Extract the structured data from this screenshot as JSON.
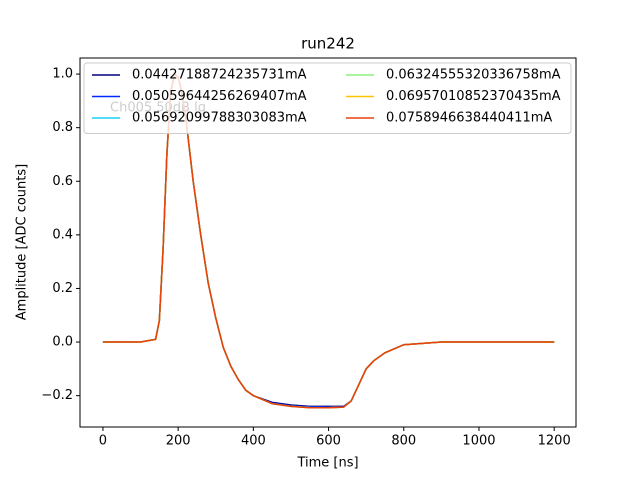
{
  "chart_data": {
    "type": "line",
    "title": "run242",
    "x_label": "Time [ns]",
    "y_label": "Amplitude [ADC counts]",
    "annotations": [
      "Ch005 50dB lg"
    ],
    "x": [
      0,
      50,
      100,
      140,
      150,
      160,
      170,
      180,
      190,
      200,
      210,
      220,
      230,
      240,
      260,
      280,
      300,
      320,
      340,
      360,
      380,
      400,
      450,
      500,
      550,
      600,
      640,
      660,
      680,
      700,
      720,
      750,
      800,
      850,
      900,
      1000,
      1100,
      1200
    ],
    "series": [
      {
        "name": "0.04427188724235731mA",
        "color": "#00007f",
        "values": [
          0,
          0,
          0,
          0.01,
          0.08,
          0.35,
          0.7,
          0.93,
          1.0,
          0.99,
          0.93,
          0.84,
          0.72,
          0.6,
          0.4,
          0.22,
          0.09,
          -0.02,
          -0.09,
          -0.14,
          -0.18,
          -0.2,
          -0.225,
          -0.235,
          -0.24,
          -0.24,
          -0.24,
          -0.22,
          -0.16,
          -0.1,
          -0.07,
          -0.04,
          -0.01,
          -0.005,
          0,
          0,
          0,
          0
        ]
      },
      {
        "name": "0.05059644256269407mA",
        "color": "#0028ff",
        "values": [
          0,
          0,
          0,
          0.01,
          0.08,
          0.35,
          0.7,
          0.93,
          1.0,
          0.99,
          0.93,
          0.84,
          0.72,
          0.6,
          0.4,
          0.22,
          0.09,
          -0.02,
          -0.09,
          -0.14,
          -0.18,
          -0.2,
          -0.228,
          -0.238,
          -0.242,
          -0.243,
          -0.242,
          -0.22,
          -0.16,
          -0.1,
          -0.07,
          -0.04,
          -0.01,
          -0.005,
          0,
          0,
          0,
          0
        ]
      },
      {
        "name": "0.05692099788303083mA",
        "color": "#1ad0f5",
        "values": [
          0,
          0,
          0,
          0.01,
          0.08,
          0.35,
          0.7,
          0.93,
          1.0,
          0.99,
          0.93,
          0.84,
          0.72,
          0.6,
          0.4,
          0.22,
          0.09,
          -0.02,
          -0.09,
          -0.14,
          -0.18,
          -0.2,
          -0.23,
          -0.24,
          -0.244,
          -0.245,
          -0.243,
          -0.22,
          -0.16,
          -0.1,
          -0.07,
          -0.04,
          -0.01,
          -0.005,
          0,
          0,
          0,
          0
        ]
      },
      {
        "name": "0.06324555320336758mA",
        "color": "#8ef07c",
        "values": [
          0,
          0,
          0,
          0.01,
          0.08,
          0.35,
          0.7,
          0.93,
          1.0,
          0.99,
          0.93,
          0.84,
          0.72,
          0.6,
          0.4,
          0.22,
          0.09,
          -0.02,
          -0.09,
          -0.14,
          -0.18,
          -0.2,
          -0.23,
          -0.24,
          -0.245,
          -0.245,
          -0.243,
          -0.22,
          -0.16,
          -0.1,
          -0.07,
          -0.04,
          -0.01,
          -0.005,
          0,
          0,
          0,
          0
        ]
      },
      {
        "name": "0.06957010852370435mA",
        "color": "#ffc400",
        "values": [
          0,
          0,
          0,
          0.01,
          0.08,
          0.35,
          0.7,
          0.93,
          1.0,
          0.99,
          0.93,
          0.84,
          0.72,
          0.6,
          0.4,
          0.22,
          0.09,
          -0.02,
          -0.09,
          -0.14,
          -0.18,
          -0.2,
          -0.23,
          -0.24,
          -0.245,
          -0.245,
          -0.243,
          -0.22,
          -0.16,
          -0.1,
          -0.07,
          -0.04,
          -0.01,
          -0.005,
          0,
          0,
          0,
          0
        ]
      },
      {
        "name": "0.0758946638440411mA",
        "color": "#e8400c",
        "values": [
          0,
          0,
          0,
          0.01,
          0.08,
          0.35,
          0.7,
          0.93,
          1.0,
          0.99,
          0.93,
          0.84,
          0.72,
          0.6,
          0.4,
          0.22,
          0.09,
          -0.02,
          -0.09,
          -0.14,
          -0.18,
          -0.2,
          -0.23,
          -0.24,
          -0.245,
          -0.245,
          -0.243,
          -0.22,
          -0.16,
          -0.1,
          -0.07,
          -0.04,
          -0.01,
          -0.005,
          0,
          0,
          0,
          0
        ]
      }
    ],
    "xlim": [
      -61,
      1258
    ],
    "xticks": [
      0,
      200,
      400,
      600,
      800,
      1000,
      1200
    ],
    "ylim": [
      -0.317,
      1.06
    ],
    "yticks": [
      {
        "value": -0.2,
        "label": "−0.2"
      },
      {
        "value": 0,
        "label": "0.0"
      },
      0.2,
      0.4,
      0.6,
      0.8,
      {
        "value": 1,
        "label": "1.0"
      }
    ],
    "legend": "upper left",
    "legend_columns": 2,
    "grid": false
  }
}
